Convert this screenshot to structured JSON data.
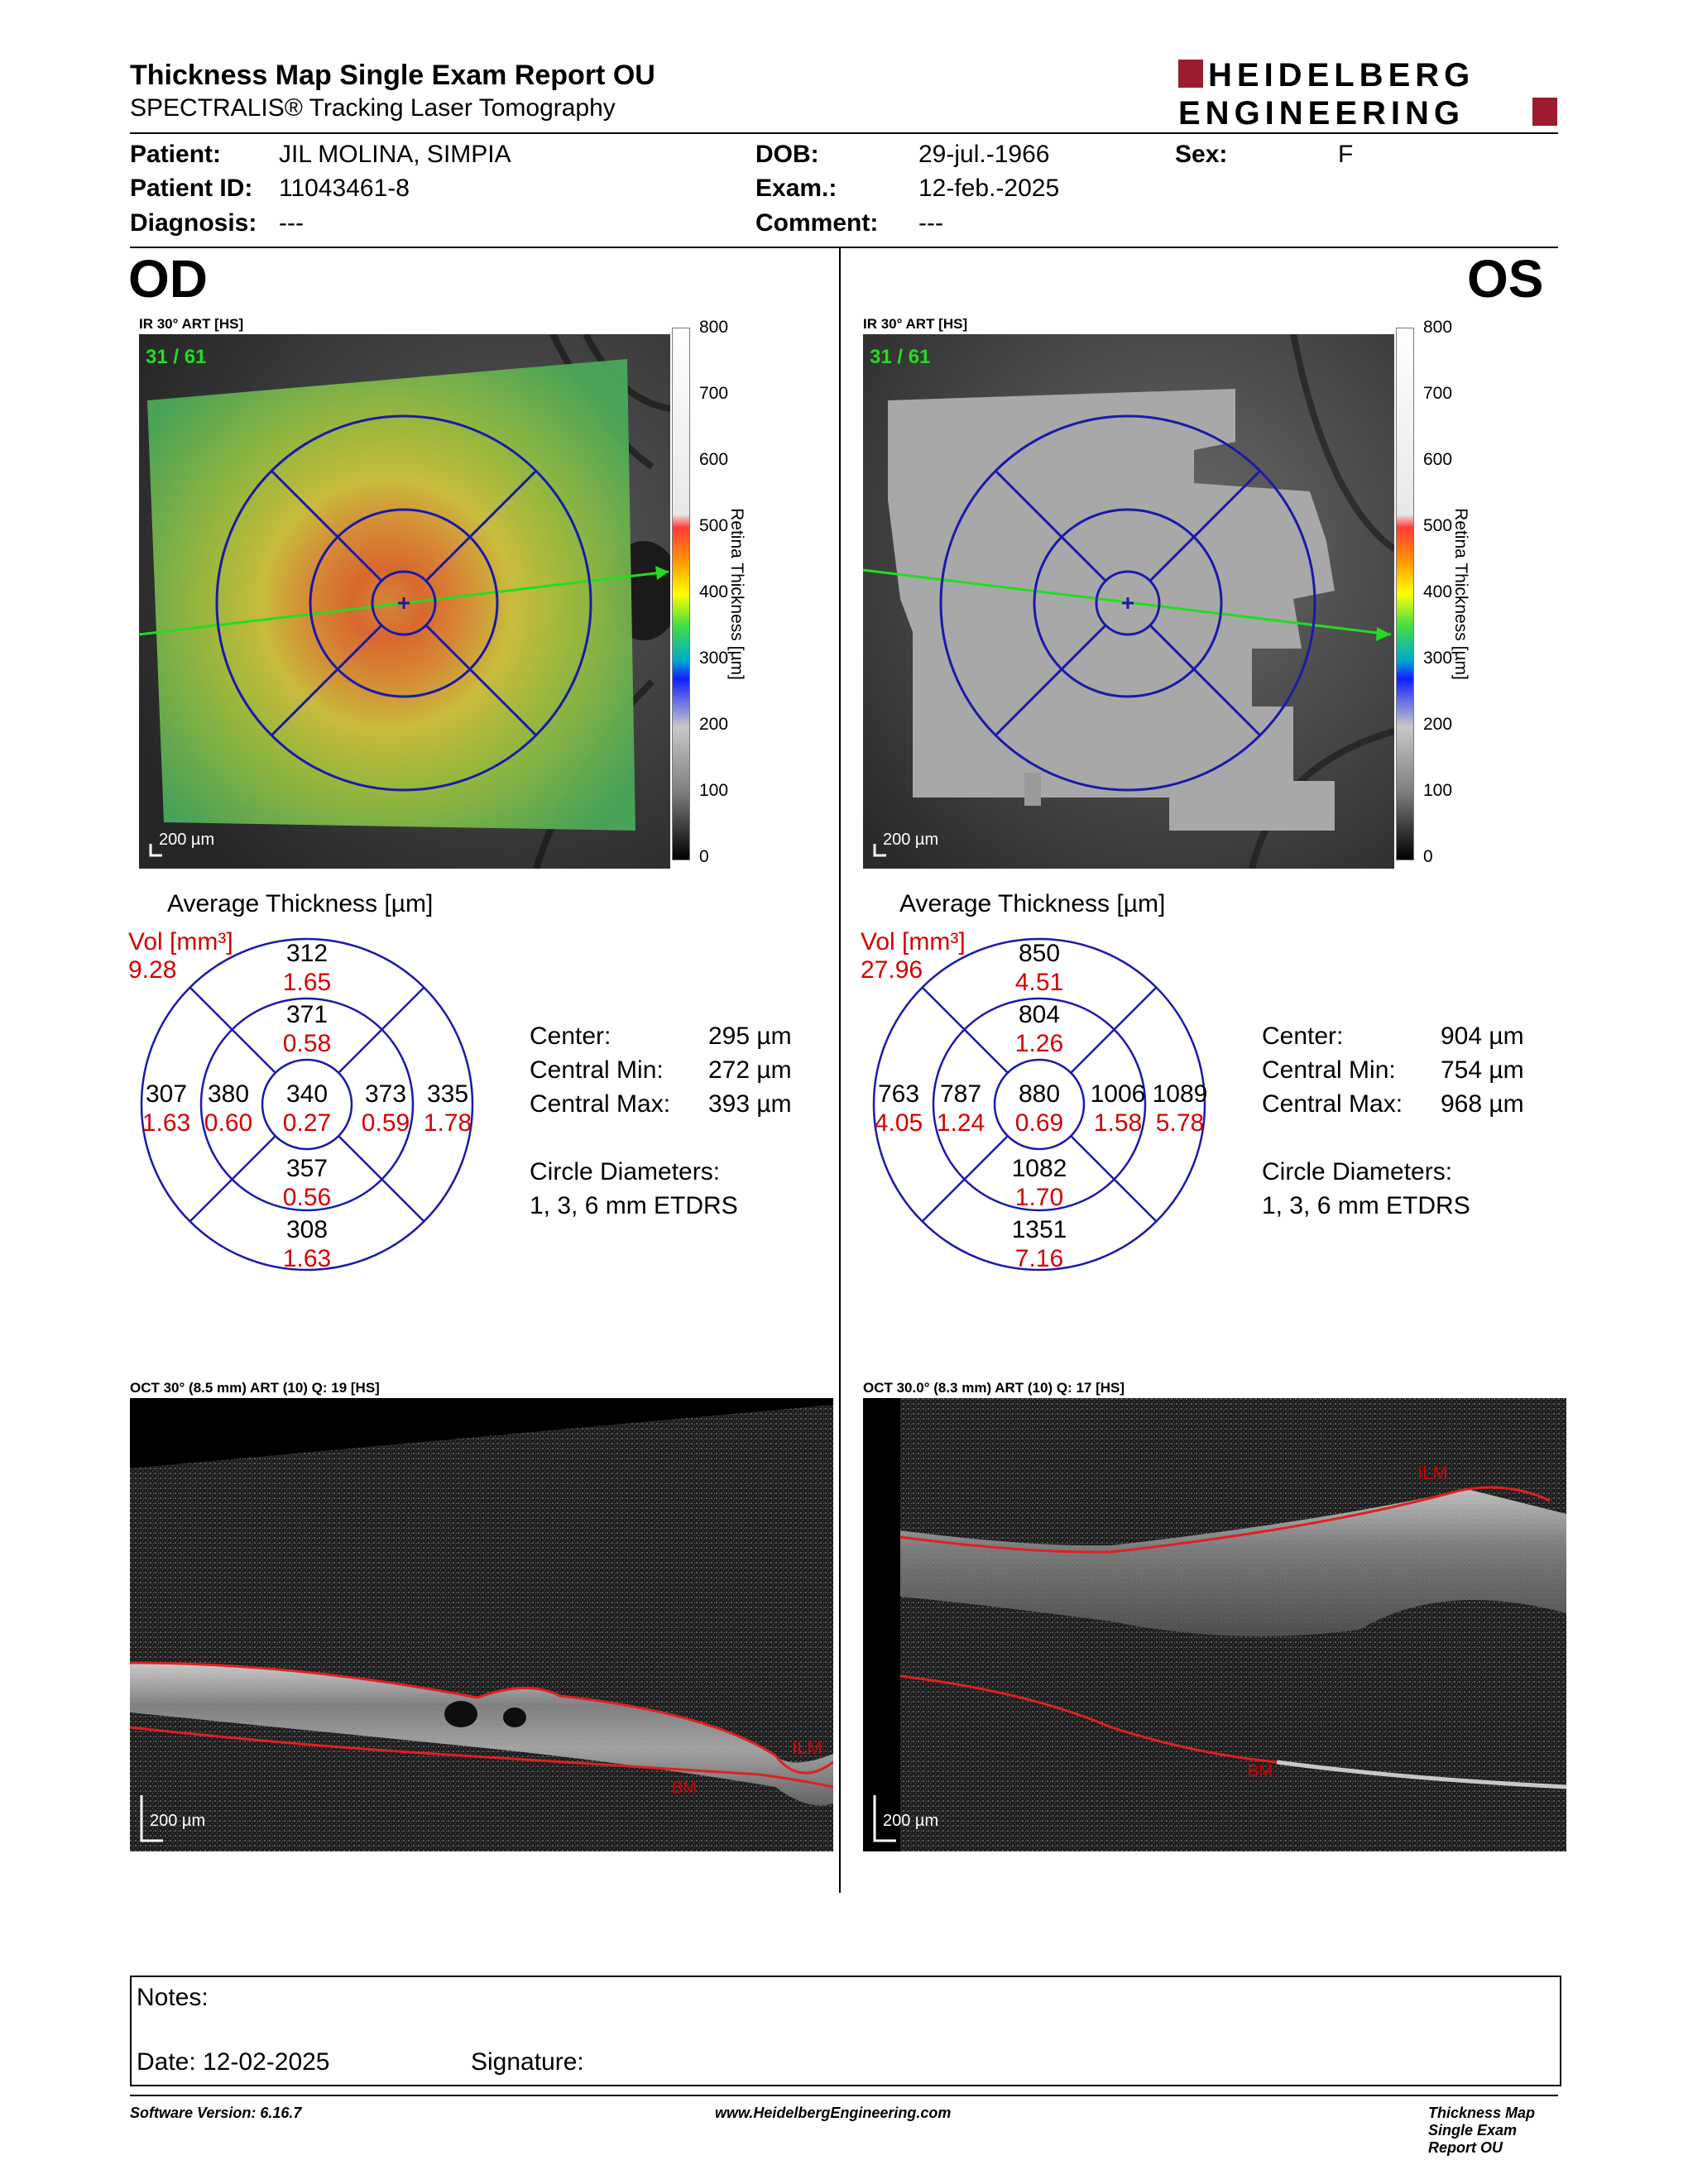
{
  "header": {
    "title": "Thickness Map Single Exam Report OU",
    "subtitle": "SPECTRALIS® Tracking Laser Tomography",
    "logo_line1": "HEIDELBERG",
    "logo_line2": "ENGINEERING"
  },
  "patient": {
    "patient_label": "Patient:",
    "patient_value": "JIL MOLINA, SIMPIA",
    "id_label": "Patient ID:",
    "id_value": "11043461-8",
    "diag_label": "Diagnosis:",
    "diag_value": "---",
    "dob_label": "DOB:",
    "dob_value": "29-jul.-1966",
    "exam_label": "Exam.:",
    "exam_value": "12-feb.-2025",
    "comment_label": "Comment:",
    "comment_value": "---",
    "sex_label": "Sex:",
    "sex_value": "F"
  },
  "scale": {
    "ticks": [
      "800",
      "700",
      "600",
      "500",
      "400",
      "300",
      "200",
      "100",
      "0"
    ],
    "label": "Retina Thickness [µm]"
  },
  "od": {
    "eye": "OD",
    "ir_caption": "IR 30° ART [HS]",
    "frame": "31 / 61",
    "scalebar": "200 µm",
    "avg_title": "Average Thickness [µm]",
    "vol_label": "Vol [mm³]",
    "vol_value": "9.28",
    "grid": {
      "outer_sup": {
        "t": "312",
        "v": "1.65"
      },
      "inner_sup": {
        "t": "371",
        "v": "0.58"
      },
      "outer_temp": {
        "t": "307",
        "v": "1.63"
      },
      "inner_temp": {
        "t": "380",
        "v": "0.60"
      },
      "center": {
        "t": "340",
        "v": "0.27"
      },
      "inner_nas": {
        "t": "373",
        "v": "0.59"
      },
      "outer_nas": {
        "t": "335",
        "v": "1.78"
      },
      "inner_inf": {
        "t": "357",
        "v": "0.56"
      },
      "outer_inf": {
        "t": "308",
        "v": "1.63"
      }
    },
    "stats": {
      "center_label": "Center:",
      "center_value": "295 µm",
      "min_label": "Central Min:",
      "min_value": "272 µm",
      "max_label": "Central Max:",
      "max_value": "393 µm",
      "diam_label": "Circle Diameters:",
      "diam_value": "1, 3, 6 mm ETDRS"
    },
    "oct_caption": "OCT 30° (8.5 mm) ART (10) Q: 19 [HS]",
    "oct_scalebar": "200 µm",
    "ilm": "ILM",
    "bm": "BM"
  },
  "os": {
    "eye": "OS",
    "ir_caption": "IR 30° ART [HS]",
    "frame": "31 / 61",
    "scalebar": "200 µm",
    "avg_title": "Average Thickness [µm]",
    "vol_label": "Vol [mm³]",
    "vol_value": "27.96",
    "grid": {
      "outer_sup": {
        "t": "850",
        "v": "4.51"
      },
      "inner_sup": {
        "t": "804",
        "v": "1.26"
      },
      "outer_temp": {
        "t": "763",
        "v": "4.05"
      },
      "inner_temp": {
        "t": "787",
        "v": "1.24"
      },
      "center": {
        "t": "880",
        "v": "0.69"
      },
      "inner_nas": {
        "t": "1006",
        "v": "1.58"
      },
      "outer_nas": {
        "t": "1089",
        "v": "5.78"
      },
      "inner_inf": {
        "t": "1082",
        "v": "1.70"
      },
      "outer_inf": {
        "t": "1351",
        "v": "7.16"
      }
    },
    "stats": {
      "center_label": "Center:",
      "center_value": "904 µm",
      "min_label": "Central Min:",
      "min_value": "754 µm",
      "max_label": "Central Max:",
      "max_value": "968 µm",
      "diam_label": "Circle Diameters:",
      "diam_value": "1, 3, 6 mm ETDRS"
    },
    "oct_caption": "OCT 30.0° (8.3 mm) ART (10) Q: 17 [HS]",
    "oct_scalebar": "200 µm",
    "ilm": "ILM",
    "bm": "BM"
  },
  "notes": {
    "notes_label": "Notes:",
    "date_label": "Date: 12-02-2025",
    "signature_label": "Signature:"
  },
  "footer": {
    "software": "Software Version: 6.16.7",
    "website": "www.HeidelbergEngineering.com",
    "report": "Thickness Map Single Exam Report OU"
  },
  "colors": {
    "grid_blue": "#1a1aa8",
    "vol_red": "#d40000",
    "logo_red": "#9b1b30",
    "frame_green": "#22dd22"
  }
}
